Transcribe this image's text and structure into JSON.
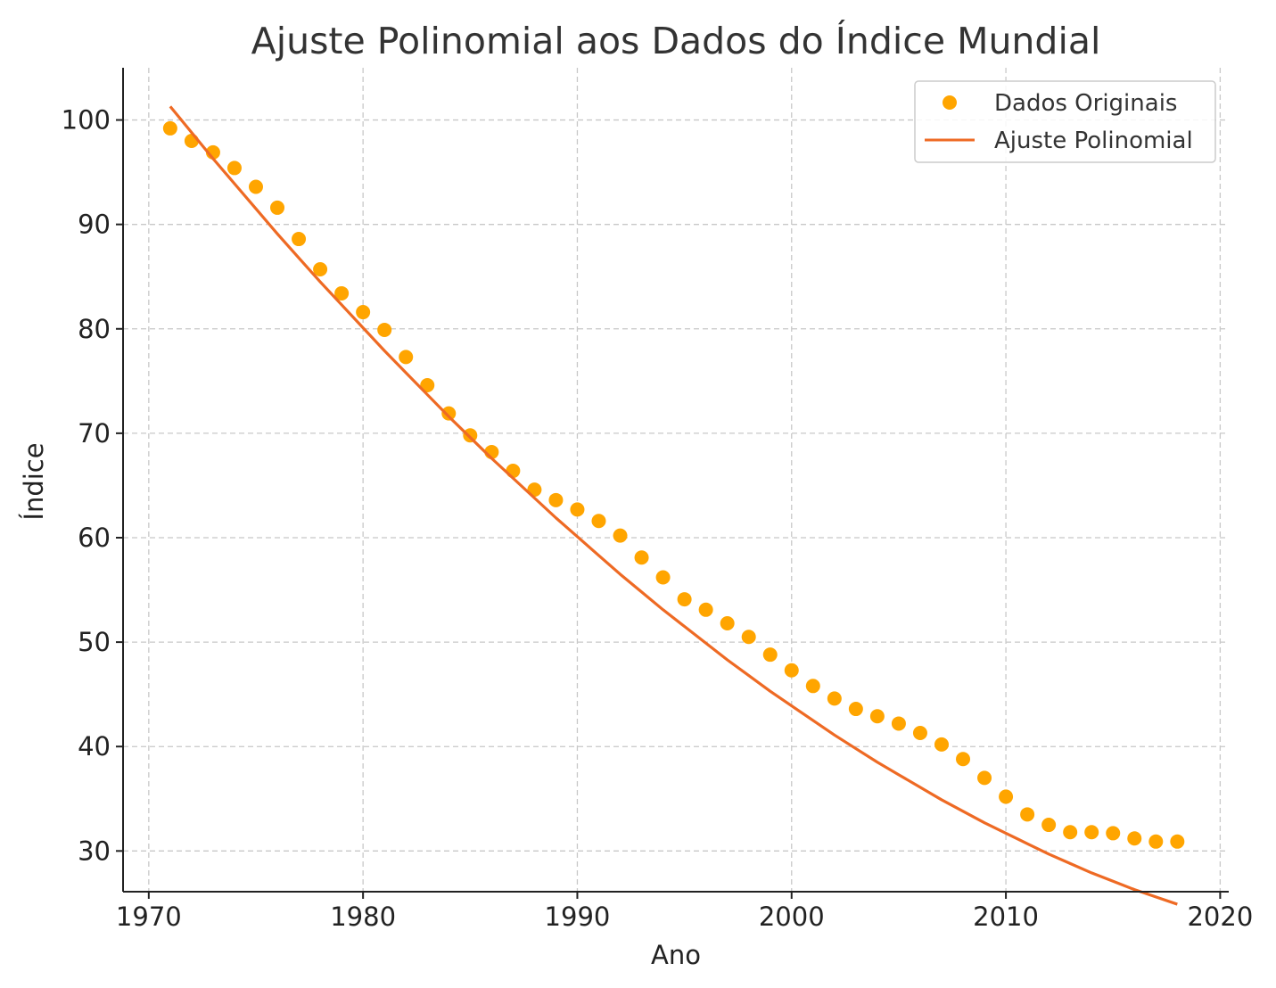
{
  "chart_data": {
    "type": "scatter",
    "title": "Ajuste Polinomial aos Dados do Índice Mundial",
    "xlabel": "Ano",
    "ylabel": "Índice",
    "xlim": [
      1968.8,
      2020.4
    ],
    "ylim": [
      26.1,
      105.0
    ],
    "xticks": [
      1970,
      1980,
      1990,
      2000,
      2010,
      2020
    ],
    "yticks": [
      30,
      40,
      50,
      60,
      70,
      80,
      90,
      100
    ],
    "grid": true,
    "legend_position": "top-right",
    "colors": {
      "points": "#FFA500",
      "fit": "#EE6A24"
    },
    "series": [
      {
        "name": "Dados Originais",
        "kind": "scatter",
        "x": [
          1971,
          1972,
          1973,
          1974,
          1975,
          1976,
          1977,
          1978,
          1979,
          1980,
          1981,
          1982,
          1983,
          1984,
          1985,
          1986,
          1987,
          1988,
          1989,
          1990,
          1991,
          1992,
          1993,
          1994,
          1995,
          1996,
          1997,
          1998,
          1999,
          2000,
          2001,
          2002,
          2003,
          2004,
          2005,
          2006,
          2007,
          2008,
          2009,
          2010,
          2011,
          2012,
          2013,
          2014,
          2015,
          2016,
          2017,
          2018
        ],
        "y": [
          99.2,
          98.0,
          96.9,
          95.4,
          93.6,
          91.6,
          88.6,
          85.7,
          83.4,
          81.6,
          79.9,
          77.3,
          74.6,
          71.9,
          69.8,
          68.2,
          66.4,
          64.6,
          63.6,
          62.7,
          61.6,
          60.2,
          58.1,
          56.2,
          54.1,
          53.1,
          51.8,
          50.5,
          48.8,
          47.3,
          45.8,
          44.6,
          43.6,
          42.9,
          42.2,
          41.3,
          40.2,
          38.8,
          37.0,
          35.2,
          33.5,
          32.5,
          31.8,
          31.8,
          31.7,
          31.2,
          30.9,
          30.9
        ]
      },
      {
        "name": "Ajuste Polinomial",
        "kind": "line",
        "x": [
          1971,
          1972,
          1973,
          1974,
          1975,
          1976,
          1977,
          1978,
          1979,
          1980,
          1981,
          1982,
          1983,
          1984,
          1985,
          1986,
          1987,
          1988,
          1989,
          1990,
          1991,
          1992,
          1993,
          1994,
          1995,
          1996,
          1997,
          1998,
          1999,
          2000,
          2001,
          2002,
          2003,
          2004,
          2005,
          2006,
          2007,
          2008,
          2009,
          2010,
          2011,
          2012,
          2013,
          2014,
          2015,
          2016,
          2017,
          2018
        ],
        "y": [
          101.3,
          98.8,
          96.3,
          93.9,
          91.5,
          89.1,
          86.8,
          84.5,
          82.3,
          80.1,
          77.9,
          75.8,
          73.7,
          71.6,
          69.6,
          67.6,
          65.7,
          63.8,
          61.9,
          60.1,
          58.3,
          56.5,
          54.8,
          53.1,
          51.5,
          49.9,
          48.3,
          46.8,
          45.3,
          43.9,
          42.5,
          41.1,
          39.8,
          38.5,
          37.3,
          36.1,
          34.9,
          33.8,
          32.7,
          31.7,
          30.7,
          29.7,
          28.8,
          27.9,
          27.1,
          26.3,
          25.6,
          24.9
        ]
      }
    ]
  }
}
